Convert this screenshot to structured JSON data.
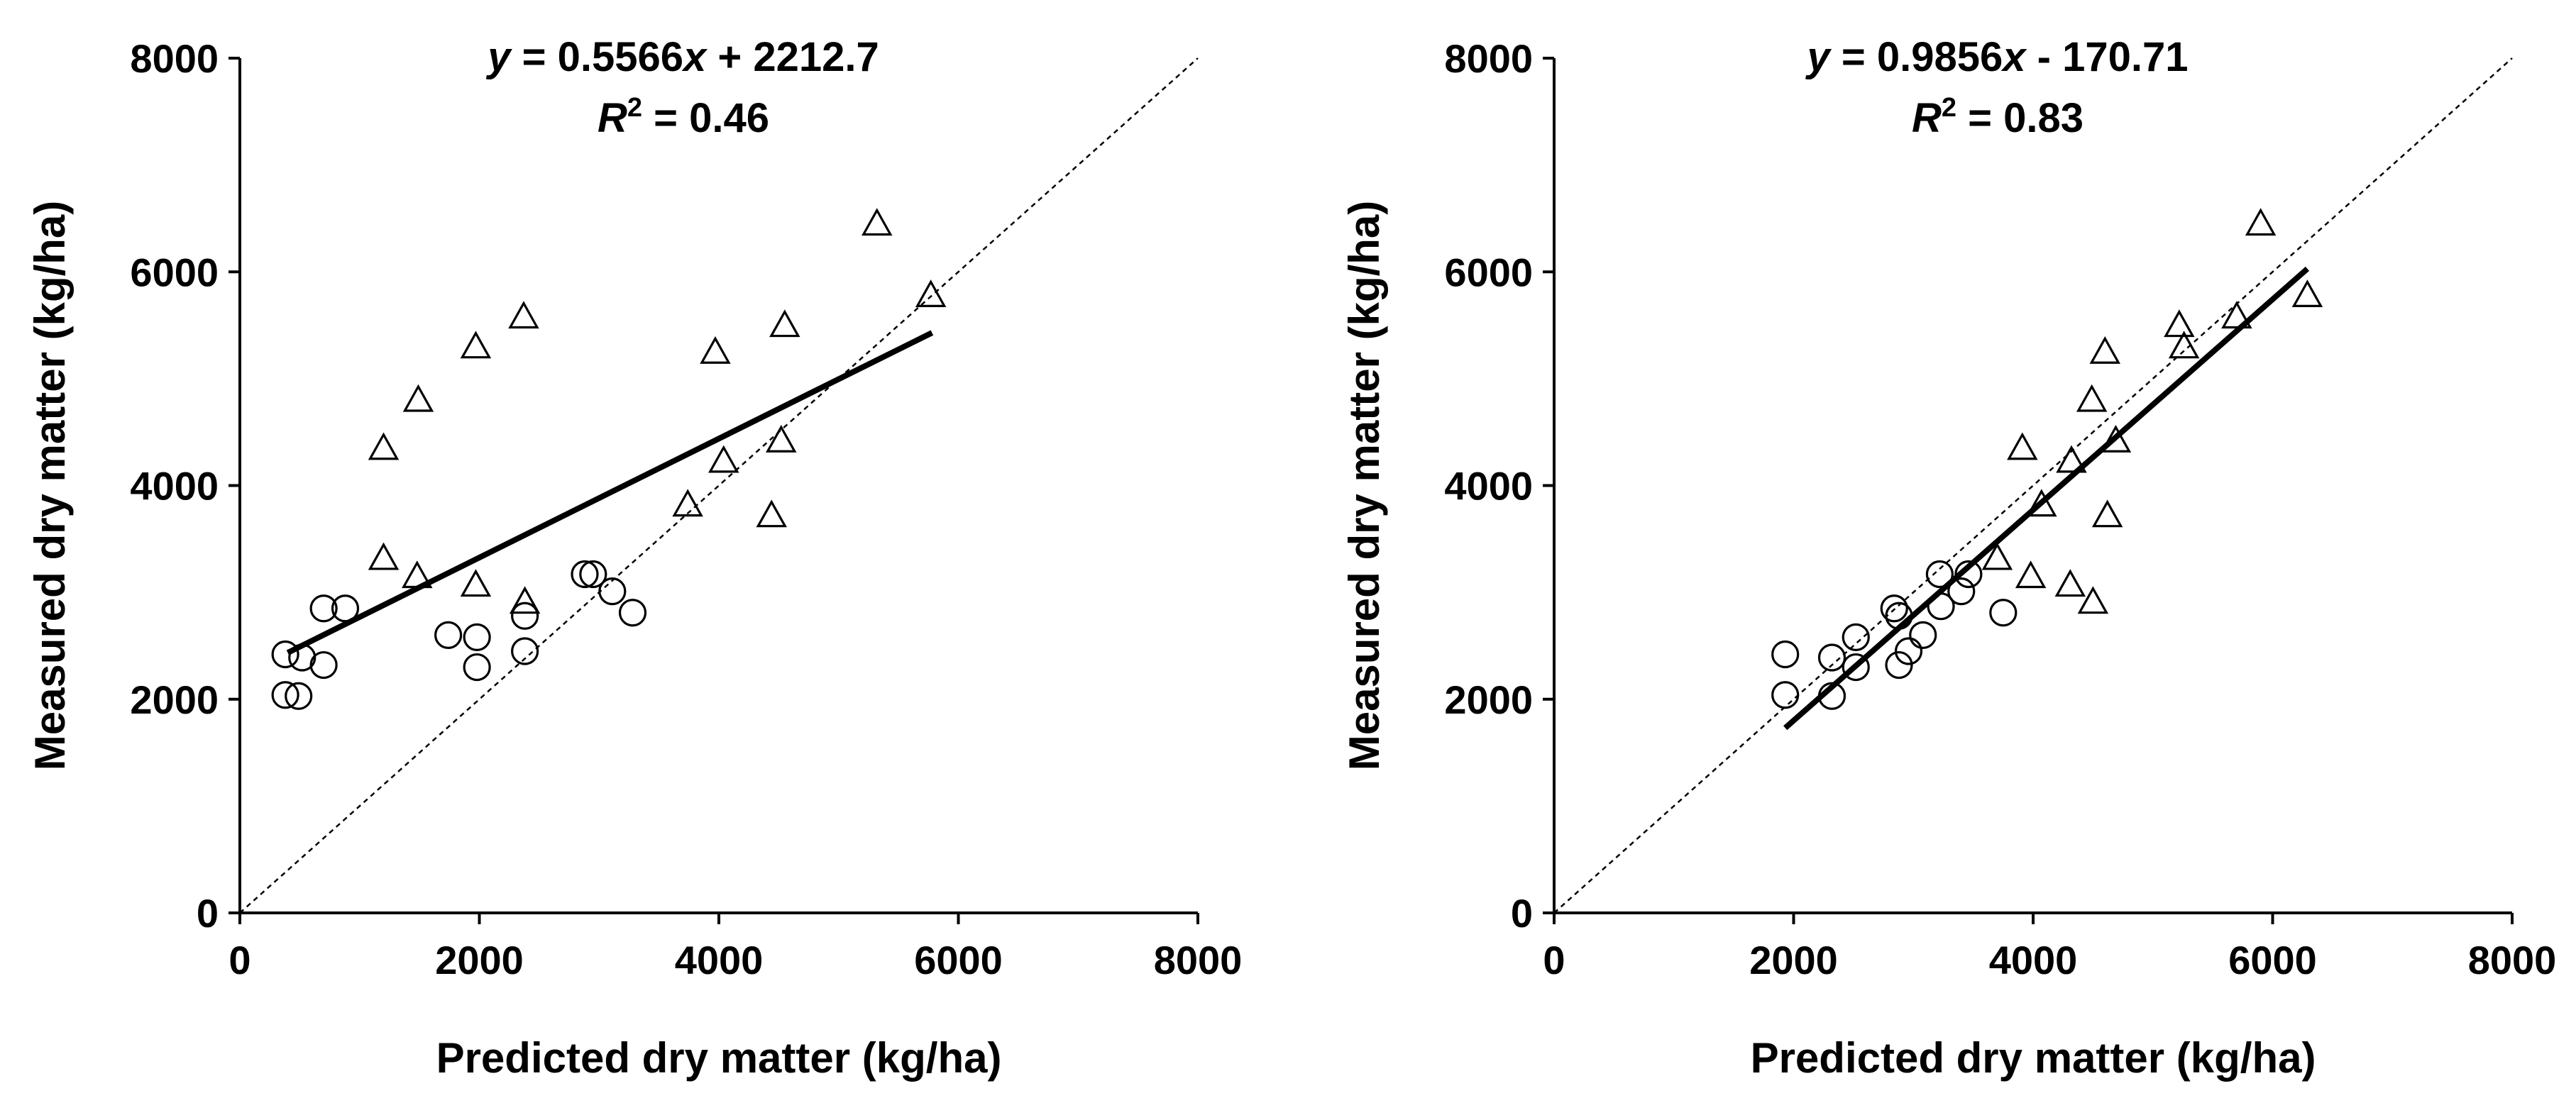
{
  "chart_data": [
    {
      "type": "scatter",
      "title": "",
      "xlabel": "Predicted dry matter (kg/ha)",
      "ylabel": "Measured dry matter (kg/ha)",
      "xlim": [
        0,
        8000
      ],
      "ylim": [
        0,
        8000
      ],
      "xticks": [
        "0",
        "2000",
        "4000",
        "6000",
        "8000"
      ],
      "yticks": [
        "0",
        "2000",
        "4000",
        "6000",
        "8000"
      ],
      "grid": false,
      "legend": "none",
      "equation_line1": {
        "pre": "y",
        "mid": " = 0.5566",
        "var": "x",
        "post": " + 2212.7"
      },
      "equation_line2": {
        "pre": "R",
        "sup": "2",
        "post": " = 0.46"
      },
      "regression": {
        "slope": 0.5566,
        "intercept": 2212.7,
        "x_range": [
          400,
          5780
        ]
      },
      "reference_line": "1:1",
      "series": [
        {
          "marker": "circle",
          "points": [
            [
              380,
              2420
            ],
            [
              520,
              2390
            ],
            [
              380,
              2040
            ],
            [
              490,
              2030
            ],
            [
              700,
              2850
            ],
            [
              880,
              2850
            ],
            [
              700,
              2320
            ],
            [
              1740,
              2600
            ],
            [
              1980,
              2580
            ],
            [
              1980,
              2300
            ],
            [
              2380,
              2780
            ],
            [
              2380,
              2450
            ],
            [
              2880,
              3170
            ],
            [
              2950,
              3170
            ],
            [
              3110,
              3010
            ],
            [
              3280,
              2810
            ]
          ]
        },
        {
          "marker": "triangle",
          "points": [
            [
              1200,
              4350
            ],
            [
              1490,
              4800
            ],
            [
              1970,
              5300
            ],
            [
              2370,
              5580
            ],
            [
              3970,
              5250
            ],
            [
              4550,
              5500
            ],
            [
              5320,
              6450
            ],
            [
              5770,
              5780
            ],
            [
              4040,
              4230
            ],
            [
              4520,
              4420
            ],
            [
              3740,
              3820
            ],
            [
              4440,
              3720
            ],
            [
              1200,
              3320
            ],
            [
              1480,
              3150
            ],
            [
              1970,
              3070
            ],
            [
              2380,
              2910
            ]
          ]
        }
      ]
    },
    {
      "type": "scatter",
      "title": "",
      "xlabel": "Predicted dry matter (kg/ha)",
      "ylabel": "Measured dry matter (kg/ha)",
      "xlim": [
        0,
        8000
      ],
      "ylim": [
        0,
        8000
      ],
      "xticks": [
        "0",
        "2000",
        "4000",
        "6000",
        "8000"
      ],
      "yticks": [
        "0",
        "2000",
        "4000",
        "6000",
        "8000"
      ],
      "grid": false,
      "legend": "none",
      "equation_line1": {
        "pre": "y",
        "mid": " = 0.9856",
        "var": "x",
        "post": " - 170.71"
      },
      "equation_line2": {
        "pre": "R",
        "sup": "2",
        "post": " = 0.83"
      },
      "regression": {
        "slope": 0.9856,
        "intercept": -170.71,
        "x_range": [
          1930,
          6290
        ]
      },
      "reference_line": "1:1",
      "series": [
        {
          "marker": "circle",
          "points": [
            [
              1930,
              2420
            ],
            [
              1930,
              2040
            ],
            [
              2320,
              2390
            ],
            [
              2320,
              2030
            ],
            [
              2520,
              2580
            ],
            [
              2520,
              2300
            ],
            [
              2840,
              2850
            ],
            [
              2880,
              2780
            ],
            [
              2880,
              2320
            ],
            [
              2960,
              2450
            ],
            [
              3080,
              2600
            ],
            [
              3220,
              3170
            ],
            [
              3230,
              2870
            ],
            [
              3400,
              3010
            ],
            [
              3460,
              3170
            ],
            [
              3750,
              2810
            ]
          ]
        },
        {
          "marker": "triangle",
          "points": [
            [
              3910,
              4350
            ],
            [
              4490,
              4800
            ],
            [
              4600,
              5250
            ],
            [
              5220,
              5500
            ],
            [
              5260,
              5300
            ],
            [
              5700,
              5580
            ],
            [
              5900,
              6450
            ],
            [
              6290,
              5780
            ],
            [
              4320,
              4230
            ],
            [
              4690,
              4420
            ],
            [
              4070,
              3820
            ],
            [
              4620,
              3720
            ],
            [
              3700,
              3320
            ],
            [
              3980,
              3150
            ],
            [
              4310,
              3070
            ],
            [
              4500,
              2910
            ]
          ]
        }
      ]
    }
  ]
}
